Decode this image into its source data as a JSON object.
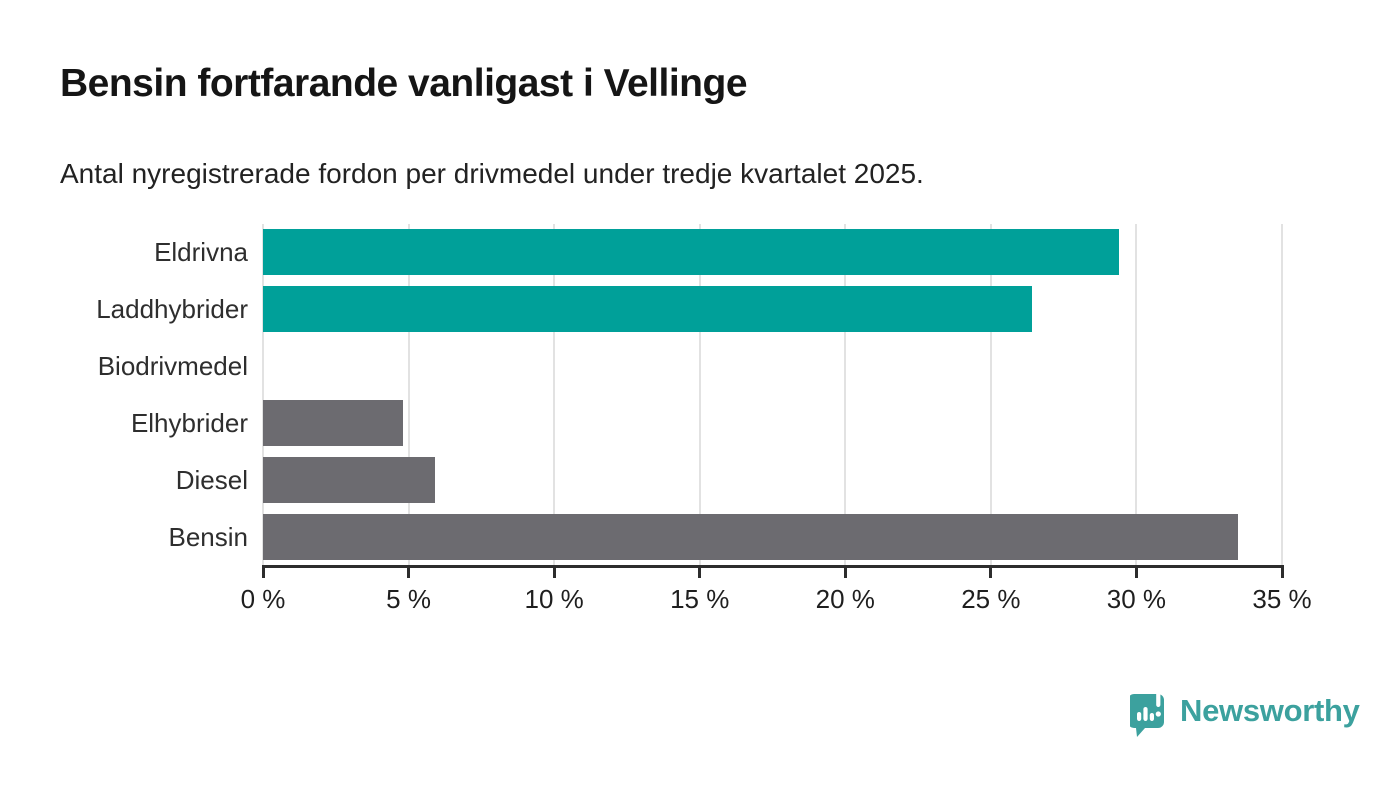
{
  "page": {
    "title": "Bensin fortfarande vanligast i Vellinge",
    "subtitle": "Antal nyregistrerade fordon per drivmedel under tredje kvartalet 2025."
  },
  "chart_data": {
    "type": "bar",
    "orientation": "horizontal",
    "title": "Bensin fortfarande vanligast i Vellinge",
    "subtitle": "Antal nyregistrerade fordon per drivmedel under tredje kvartalet 2025.",
    "categories": [
      "Eldrivna",
      "Laddhybrider",
      "Biodrivmedel",
      "Elhybrider",
      "Diesel",
      "Bensin"
    ],
    "values": [
      29.4,
      26.4,
      0,
      4.8,
      5.9,
      33.5
    ],
    "unit": "%",
    "xlim": [
      0,
      35
    ],
    "xticks": [
      0,
      5,
      10,
      15,
      20,
      25,
      30,
      35
    ],
    "xtick_labels": [
      "0 %",
      "5 %",
      "10 %",
      "15 %",
      "20 %",
      "25 %",
      "30 %",
      "35 %"
    ],
    "bar_colors": [
      "#00a099",
      "#00a099",
      "#00a099",
      "#6c6b70",
      "#6c6b70",
      "#6c6b70"
    ],
    "grid": "vertical-only",
    "legend": "none"
  },
  "colors": {
    "teal_bar": "#00a099",
    "gray_bar": "#6c6b70",
    "gridline": "#e2e2e2",
    "axis": "#2d2d2d",
    "brand_teal": "#3ca19e"
  },
  "footer": {
    "brand": "Newsworthy",
    "logo_icon": "newsworthy-pin-barchart-icon"
  }
}
